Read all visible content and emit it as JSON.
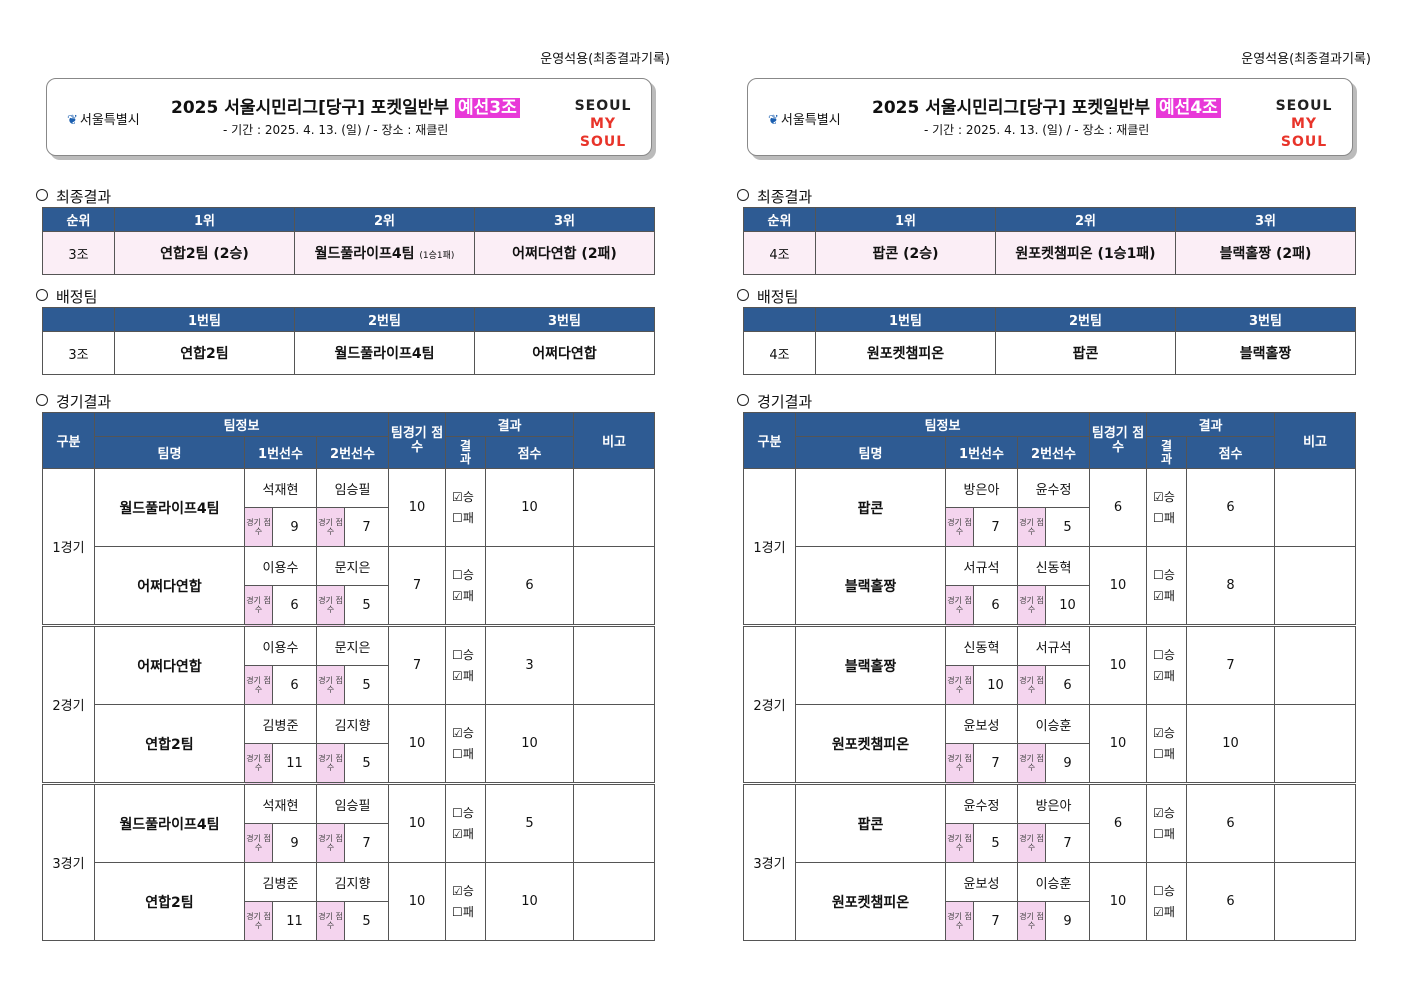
{
  "pages": [
    {
      "top_note": "운영석용(최종결과기록)",
      "header": {
        "org": "서울특별시",
        "title": "2025  서울시민리그[당구]  포켓일반부",
        "group_badge": "예선3조",
        "subtitle": "- 기간 : 2025. 4. 13. (일) / - 장소 : 재클린",
        "seoul_logo_line1": "SEOUL",
        "seoul_logo_line2": "MY SOUL"
      },
      "final": {
        "section": "최종결과",
        "headers": [
          "순위",
          "1위",
          "2위",
          "3위"
        ],
        "group": "3조",
        "first": "연합2팀 (2승)",
        "second": "월드풀라이프4팀",
        "second_record": "(1승1패)",
        "third": "어쩌다연합 (2패)"
      },
      "assign": {
        "section": "배정팀",
        "headers": [
          "",
          "1번팀",
          "2번팀",
          "3번팀"
        ],
        "group": "3조",
        "team1": "연합2팀",
        "team2": "월드풀라이프4팀",
        "team3": "어쩌다연합"
      },
      "results": {
        "section": "경기결과",
        "headers": {
          "category": "구분",
          "team_info": "팀정보",
          "team_name": "팀명",
          "player1": "1번선수",
          "player2": "2번선수",
          "team_score": "팀경기 점수",
          "result": "결과",
          "result_wl": "결과",
          "points": "점수",
          "note": "비고",
          "game_score_label": "경기 점수",
          "win": "승",
          "loss": "패"
        },
        "games": [
          {
            "label": "1경기",
            "rows": [
              {
                "team": "월드풀라이프4팀",
                "p1": "석재현",
                "p2": "임승필",
                "s1": "9",
                "s2": "7",
                "team_score": "10",
                "win_mark": "☑",
                "loss_mark": "☐",
                "points": "10"
              },
              {
                "team": "어쩌다연합",
                "p1": "이용수",
                "p2": "문지은",
                "s1": "6",
                "s2": "5",
                "team_score": "7",
                "win_mark": "☐",
                "loss_mark": "☑",
                "points": "6"
              }
            ]
          },
          {
            "label": "2경기",
            "rows": [
              {
                "team": "어쩌다연합",
                "p1": "이용수",
                "p2": "문지은",
                "s1": "6",
                "s2": "5",
                "team_score": "7",
                "win_mark": "☐",
                "loss_mark": "☑",
                "points": "3"
              },
              {
                "team": "연합2팀",
                "p1": "김병준",
                "p2": "김지향",
                "s1": "11",
                "s2": "5",
                "team_score": "10",
                "win_mark": "☑",
                "loss_mark": "☐",
                "points": "10"
              }
            ]
          },
          {
            "label": "3경기",
            "rows": [
              {
                "team": "월드풀라이프4팀",
                "p1": "석재현",
                "p2": "임승필",
                "s1": "9",
                "s2": "7",
                "team_score": "10",
                "win_mark": "☐",
                "loss_mark": "☑",
                "points": "5"
              },
              {
                "team": "연합2팀",
                "p1": "김병준",
                "p2": "김지향",
                "s1": "11",
                "s2": "5",
                "team_score": "10",
                "win_mark": "☑",
                "loss_mark": "☐",
                "points": "10"
              }
            ]
          }
        ]
      }
    },
    {
      "top_note": "운영석용(최종결과기록)",
      "header": {
        "org": "서울특별시",
        "title": "2025  서울시민리그[당구]  포켓일반부",
        "group_badge": "예선4조",
        "subtitle": "- 기간 : 2025. 4. 13. (일) / - 장소 : 재클린",
        "seoul_logo_line1": "SEOUL",
        "seoul_logo_line2": "MY SOUL"
      },
      "final": {
        "section": "최종결과",
        "headers": [
          "순위",
          "1위",
          "2위",
          "3위"
        ],
        "group": "4조",
        "first": "팝콘 (2승)",
        "second": "원포켓챔피온 (1승1패)",
        "second_record": "",
        "third": "블랙홀짱 (2패)"
      },
      "assign": {
        "section": "배정팀",
        "headers": [
          "",
          "1번팀",
          "2번팀",
          "3번팀"
        ],
        "group": "4조",
        "team1": "원포켓챔피온",
        "team2": "팝콘",
        "team3": "블랙홀짱"
      },
      "results": {
        "section": "경기결과",
        "headers": {
          "category": "구분",
          "team_info": "팀정보",
          "team_name": "팀명",
          "player1": "1번선수",
          "player2": "2번선수",
          "team_score": "팀경기 점수",
          "result": "결과",
          "result_wl": "결과",
          "points": "점수",
          "note": "비고",
          "game_score_label": "경기 점수",
          "win": "승",
          "loss": "패"
        },
        "games": [
          {
            "label": "1경기",
            "rows": [
              {
                "team": "팝콘",
                "p1": "방은아",
                "p2": "윤수정",
                "s1": "7",
                "s2": "5",
                "team_score": "6",
                "win_mark": "☑",
                "loss_mark": "☐",
                "points": "6"
              },
              {
                "team": "블랙홀짱",
                "p1": "서규석",
                "p2": "신동혁",
                "s1": "6",
                "s2": "10",
                "team_score": "10",
                "win_mark": "☐",
                "loss_mark": "☑",
                "points": "8"
              }
            ]
          },
          {
            "label": "2경기",
            "rows": [
              {
                "team": "블랙홀짱",
                "p1": "신동혁",
                "p2": "서규석",
                "s1": "10",
                "s2": "6",
                "team_score": "10",
                "win_mark": "☐",
                "loss_mark": "☑",
                "points": "7"
              },
              {
                "team": "원포켓챔피온",
                "p1": "윤보성",
                "p2": "이승훈",
                "s1": "7",
                "s2": "9",
                "team_score": "10",
                "win_mark": "☑",
                "loss_mark": "☐",
                "points": "10"
              }
            ]
          },
          {
            "label": "3경기",
            "rows": [
              {
                "team": "팝콘",
                "p1": "윤수정",
                "p2": "방은아",
                "s1": "5",
                "s2": "7",
                "team_score": "6",
                "win_mark": "☑",
                "loss_mark": "☐",
                "points": "6"
              },
              {
                "team": "원포켓챔피온",
                "p1": "윤보성",
                "p2": "이승훈",
                "s1": "7",
                "s2": "9",
                "team_score": "10",
                "win_mark": "☐",
                "loss_mark": "☑",
                "points": "6"
              }
            ]
          }
        ]
      }
    }
  ]
}
